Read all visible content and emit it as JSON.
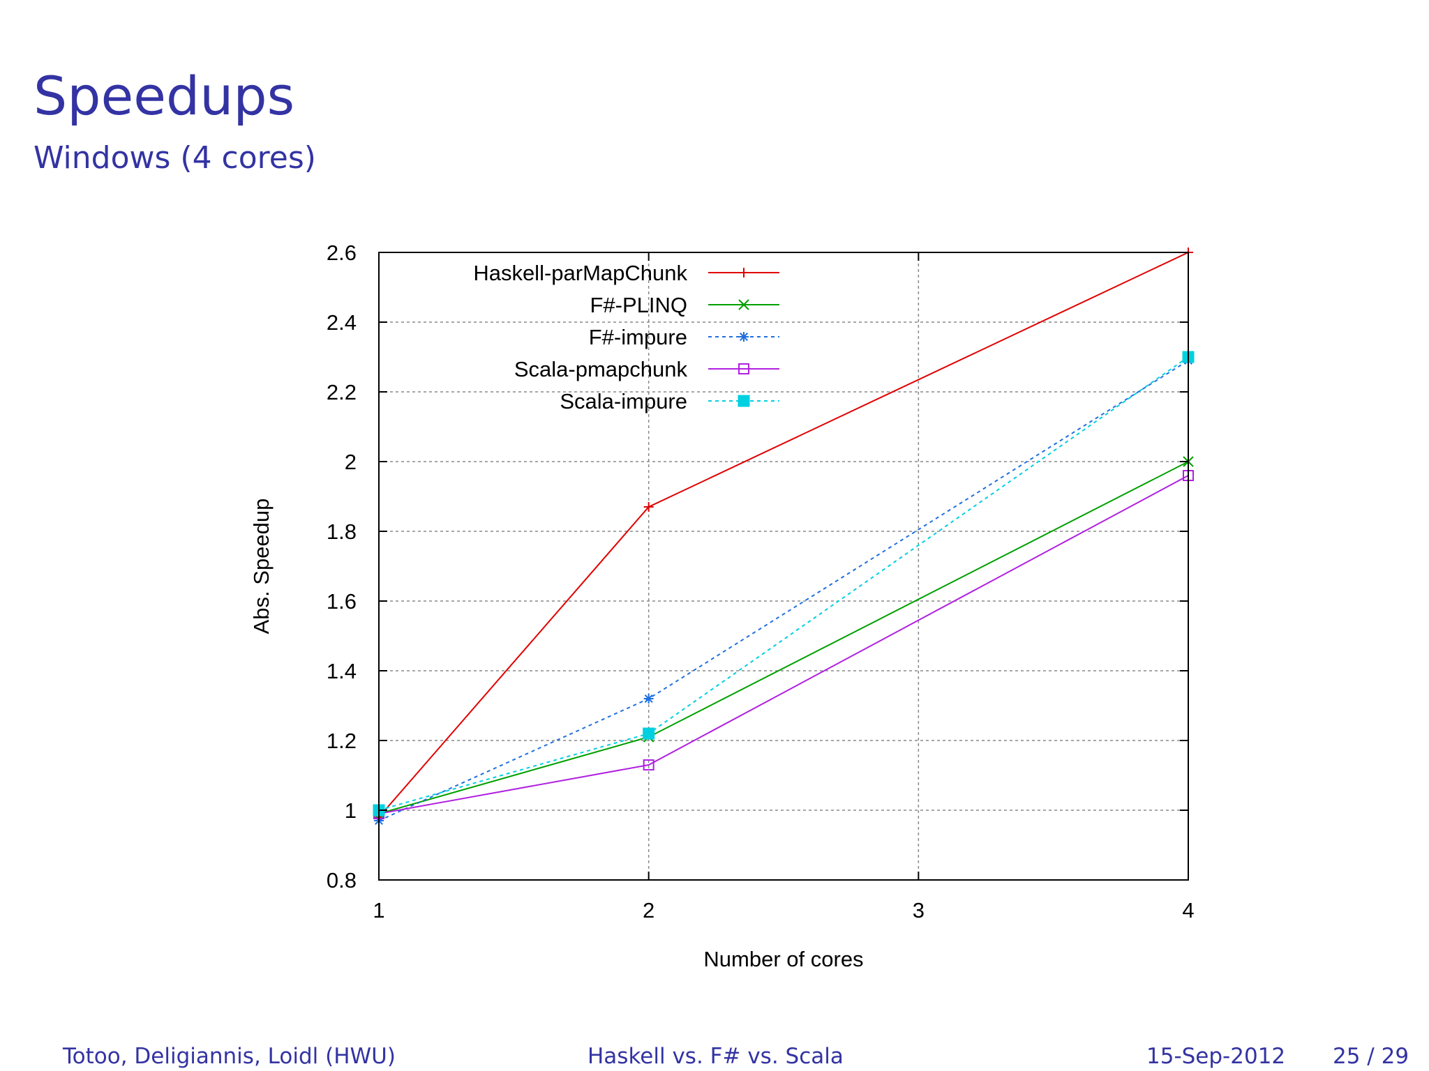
{
  "slide": {
    "title": "Speedups",
    "subtitle": "Windows (4 cores)"
  },
  "footer": {
    "authors": "Totoo, Deligiannis, Loidl  (HWU)",
    "talk_title": "Haskell vs. F# vs. Scala",
    "date": "15-Sep-2012",
    "page": "25 / 29"
  },
  "chart_data": {
    "type": "line",
    "title": "",
    "xlabel": "Number of cores",
    "ylabel": "Abs. Speedup",
    "x": [
      1,
      2,
      3,
      4
    ],
    "xlim": [
      1,
      4
    ],
    "ylim": [
      0.8,
      2.6
    ],
    "xticks": [
      "1",
      "2",
      "3",
      "4"
    ],
    "yticks": [
      "0.8",
      "1",
      "1.2",
      "1.4",
      "1.6",
      "1.8",
      "2",
      "2.2",
      "2.4",
      "2.6"
    ],
    "grid": true,
    "legend_position": "top-left",
    "series": [
      {
        "name": "Haskell-parMapChunk",
        "x": [
          1,
          2,
          4
        ],
        "values": [
          0.98,
          1.87,
          2.6
        ],
        "color": "#e00000",
        "dash": "solid",
        "marker": "plus"
      },
      {
        "name": "F#-PLINQ",
        "x": [
          1,
          2,
          4
        ],
        "values": [
          0.99,
          1.21,
          2.0
        ],
        "color": "#00a000",
        "dash": "solid",
        "marker": "cross"
      },
      {
        "name": "F#-impure",
        "x": [
          1,
          2,
          4
        ],
        "values": [
          0.97,
          1.32,
          2.29
        ],
        "color": "#1f6fe0",
        "dash": "dashed",
        "marker": "star"
      },
      {
        "name": "Scala-pmapchunk",
        "x": [
          1,
          2,
          4
        ],
        "values": [
          0.99,
          1.13,
          1.96
        ],
        "color": "#b020e0",
        "dash": "solid",
        "marker": "open-square"
      },
      {
        "name": "Scala-impure",
        "x": [
          1,
          2,
          4
        ],
        "values": [
          1.0,
          1.22,
          2.3
        ],
        "color": "#00d0e0",
        "dash": "dashed",
        "marker": "filled-square"
      }
    ]
  }
}
